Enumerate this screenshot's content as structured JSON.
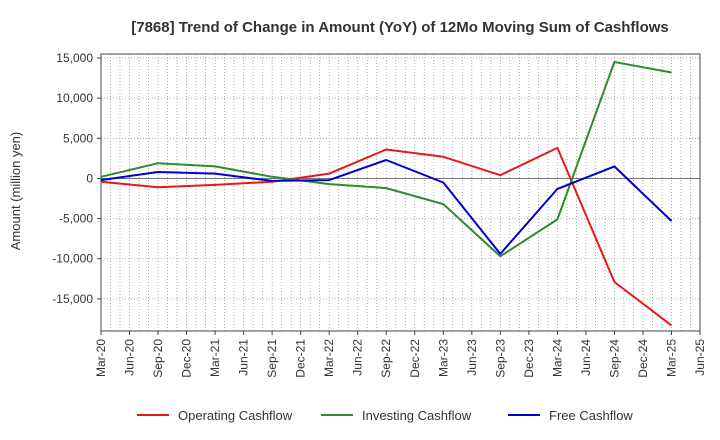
{
  "chart_data": {
    "type": "line",
    "title": "[7868]  Trend of Change in Amount (YoY) of 12Mo Moving Sum of Cashflows",
    "xlabel": "",
    "ylabel": "Amount (million yen)",
    "ylim": [
      -19000,
      15500
    ],
    "yticks": [
      15000,
      10000,
      5000,
      0,
      -5000,
      -10000,
      -15000
    ],
    "ytick_labels": [
      "15,000",
      "10,000",
      "5,000",
      "0",
      "-5,000",
      "-10,000",
      "-15,000"
    ],
    "categories": [
      "Mar-20",
      "Jun-20",
      "Sep-20",
      "Dec-20",
      "Mar-21",
      "Jun-21",
      "Sep-21",
      "Dec-21",
      "Mar-22",
      "Jun-22",
      "Sep-22",
      "Dec-22",
      "Mar-23",
      "Jun-23",
      "Sep-23",
      "Dec-23",
      "Mar-24",
      "Jun-24",
      "Sep-24",
      "Dec-24",
      "Mar-25",
      "Jun-25"
    ],
    "grid": true,
    "legend_position": "bottom",
    "series": [
      {
        "name": "Operating Cashflow",
        "color": "#e31a1c",
        "x": [
          "Mar-20",
          "Sep-20",
          "Mar-21",
          "Sep-21",
          "Mar-22",
          "Sep-22",
          "Mar-23",
          "Sep-23",
          "Mar-24",
          "Sep-24",
          "Mar-25"
        ],
        "values": [
          -400,
          -1100,
          -800,
          -400,
          600,
          3600,
          2700,
          400,
          3800,
          -12900,
          -18300
        ]
      },
      {
        "name": "Investing Cashflow",
        "color": "#2e8b2e",
        "x": [
          "Mar-20",
          "Sep-20",
          "Mar-21",
          "Sep-21",
          "Mar-22",
          "Sep-22",
          "Mar-23",
          "Sep-23",
          "Mar-24",
          "Sep-24",
          "Mar-25"
        ],
        "values": [
          200,
          1900,
          1500,
          200,
          -700,
          -1200,
          -3200,
          -9700,
          -5100,
          14500,
          13200
        ]
      },
      {
        "name": "Free Cashflow",
        "color": "#0000cc",
        "x": [
          "Mar-20",
          "Sep-20",
          "Mar-21",
          "Sep-21",
          "Mar-22",
          "Sep-22",
          "Mar-23",
          "Sep-23",
          "Mar-24",
          "Sep-24",
          "Mar-25"
        ],
        "values": [
          -200,
          800,
          600,
          -300,
          -200,
          2300,
          -500,
          -9400,
          -1300,
          1500,
          -5300
        ]
      }
    ]
  }
}
